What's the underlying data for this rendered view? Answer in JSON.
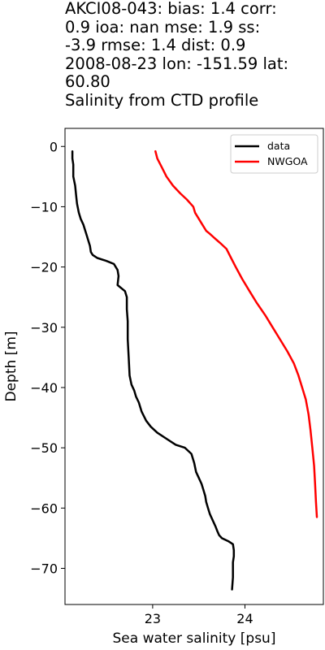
{
  "chart_data": {
    "type": "line",
    "title_lines": [
      "AKCI08-043: bias: 1.4  corr:",
      "0.9  ioa: nan  mse: 1.9  ss:",
      "-3.9  rmse: 1.4  dist: 0.9",
      "2008-08-23 lon: -151.59 lat:",
      "60.80",
      "Salinity from CTD profile"
    ],
    "xlabel": "Sea water salinity [psu]",
    "ylabel": "Depth [m]",
    "xlim": [
      22.05,
      24.85
    ],
    "ylim": [
      -76,
      3
    ],
    "xticks": [
      23,
      24
    ],
    "yticks": [
      0,
      -10,
      -20,
      -30,
      -40,
      -50,
      -60,
      -70
    ],
    "ytick_labels": [
      "0",
      "−10",
      "−20",
      "−30",
      "−40",
      "−50",
      "−60",
      "−70"
    ],
    "legend_position": "top-right",
    "series": [
      {
        "name": "data",
        "color": "#000000",
        "x": [
          22.13,
          22.13,
          22.14,
          22.14,
          22.16,
          22.17,
          22.18,
          22.2,
          22.22,
          22.25,
          22.27,
          22.29,
          22.3,
          22.32,
          22.33,
          22.35,
          22.4,
          22.5,
          22.58,
          22.62,
          22.63,
          22.62,
          22.7,
          22.72,
          22.72,
          22.73,
          22.73,
          22.74,
          22.75,
          22.77,
          22.8,
          22.82,
          22.85,
          22.88,
          22.93,
          22.98,
          23.05,
          23.15,
          23.25,
          23.35,
          23.42,
          23.45,
          23.47,
          23.5,
          23.53,
          23.55,
          23.57,
          23.58,
          23.6,
          23.62,
          23.65,
          23.68,
          23.7,
          23.72,
          23.75,
          23.82,
          23.87,
          23.88,
          23.88,
          23.87,
          23.87,
          23.87,
          23.86
        ],
        "y": [
          -0.8,
          -2,
          -3,
          -5,
          -6.5,
          -8,
          -9.5,
          -11,
          -12,
          -13,
          -14,
          -15,
          -15.5,
          -16.5,
          -17.5,
          -18,
          -18.5,
          -19,
          -19.5,
          -20.5,
          -21.5,
          -23,
          -24,
          -25,
          -27,
          -29,
          -32,
          -35,
          -38,
          -39.5,
          -40.5,
          -41.5,
          -42.5,
          -44,
          -45.5,
          -46.5,
          -47.5,
          -48.5,
          -49.5,
          -50,
          -51,
          -52.5,
          -54,
          -55,
          -56,
          -57,
          -58,
          -59,
          -60,
          -61,
          -62,
          -63,
          -63.8,
          -64.5,
          -65,
          -65.5,
          -66,
          -67,
          -68,
          -69,
          -70,
          -71.5,
          -73.5
        ]
      },
      {
        "name": "NWGOA",
        "color": "#ff0000",
        "x": [
          23.03,
          23.05,
          23.1,
          23.15,
          23.22,
          23.3,
          23.37,
          23.44,
          23.46,
          23.5,
          23.54,
          23.58,
          23.62,
          23.67,
          23.73,
          23.8,
          23.85,
          23.9,
          23.97,
          24.05,
          24.13,
          24.22,
          24.3,
          24.38,
          24.46,
          24.53,
          24.58,
          24.62,
          24.66,
          24.69,
          24.71,
          24.73,
          24.75,
          24.76,
          24.77,
          24.78
        ],
        "y": [
          -0.8,
          -2,
          -3.5,
          -5,
          -6.5,
          -7.8,
          -8.8,
          -10,
          -11,
          -12,
          -13,
          -14,
          -14.5,
          -15.2,
          -16,
          -17,
          -18.5,
          -20,
          -22,
          -24,
          -26,
          -28,
          -30,
          -32,
          -34,
          -36,
          -38,
          -40,
          -42,
          -44.5,
          -47,
          -50,
          -53,
          -56,
          -59,
          -61.5
        ]
      }
    ]
  }
}
